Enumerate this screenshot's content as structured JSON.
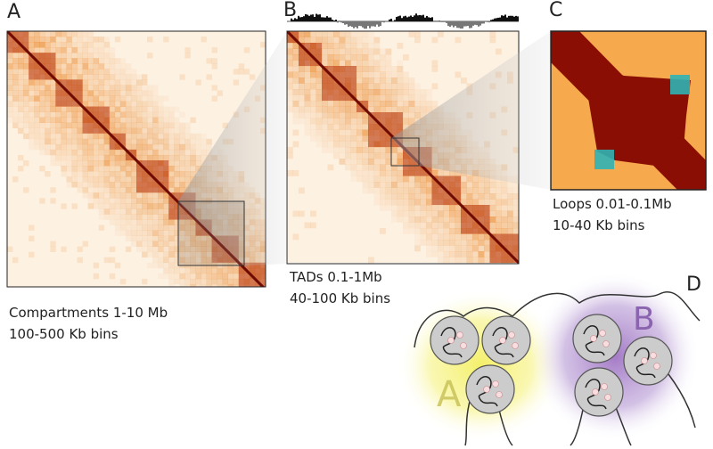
{
  "panels": [
    {
      "label": "A",
      "caption": [
        "Compartments 1-10 Mb",
        "100-500 Kb bins"
      ]
    },
    {
      "label": "B",
      "caption": [
        "TADs 0.1-1Mb",
        "40-100 Kb bins"
      ]
    },
    {
      "label": "C",
      "caption": [
        "Loops 0.01-0.1Mb",
        "10-40 Kb bins"
      ]
    }
  ],
  "diagram": {
    "label": "D",
    "compartments": [
      "A",
      "B"
    ]
  }
}
